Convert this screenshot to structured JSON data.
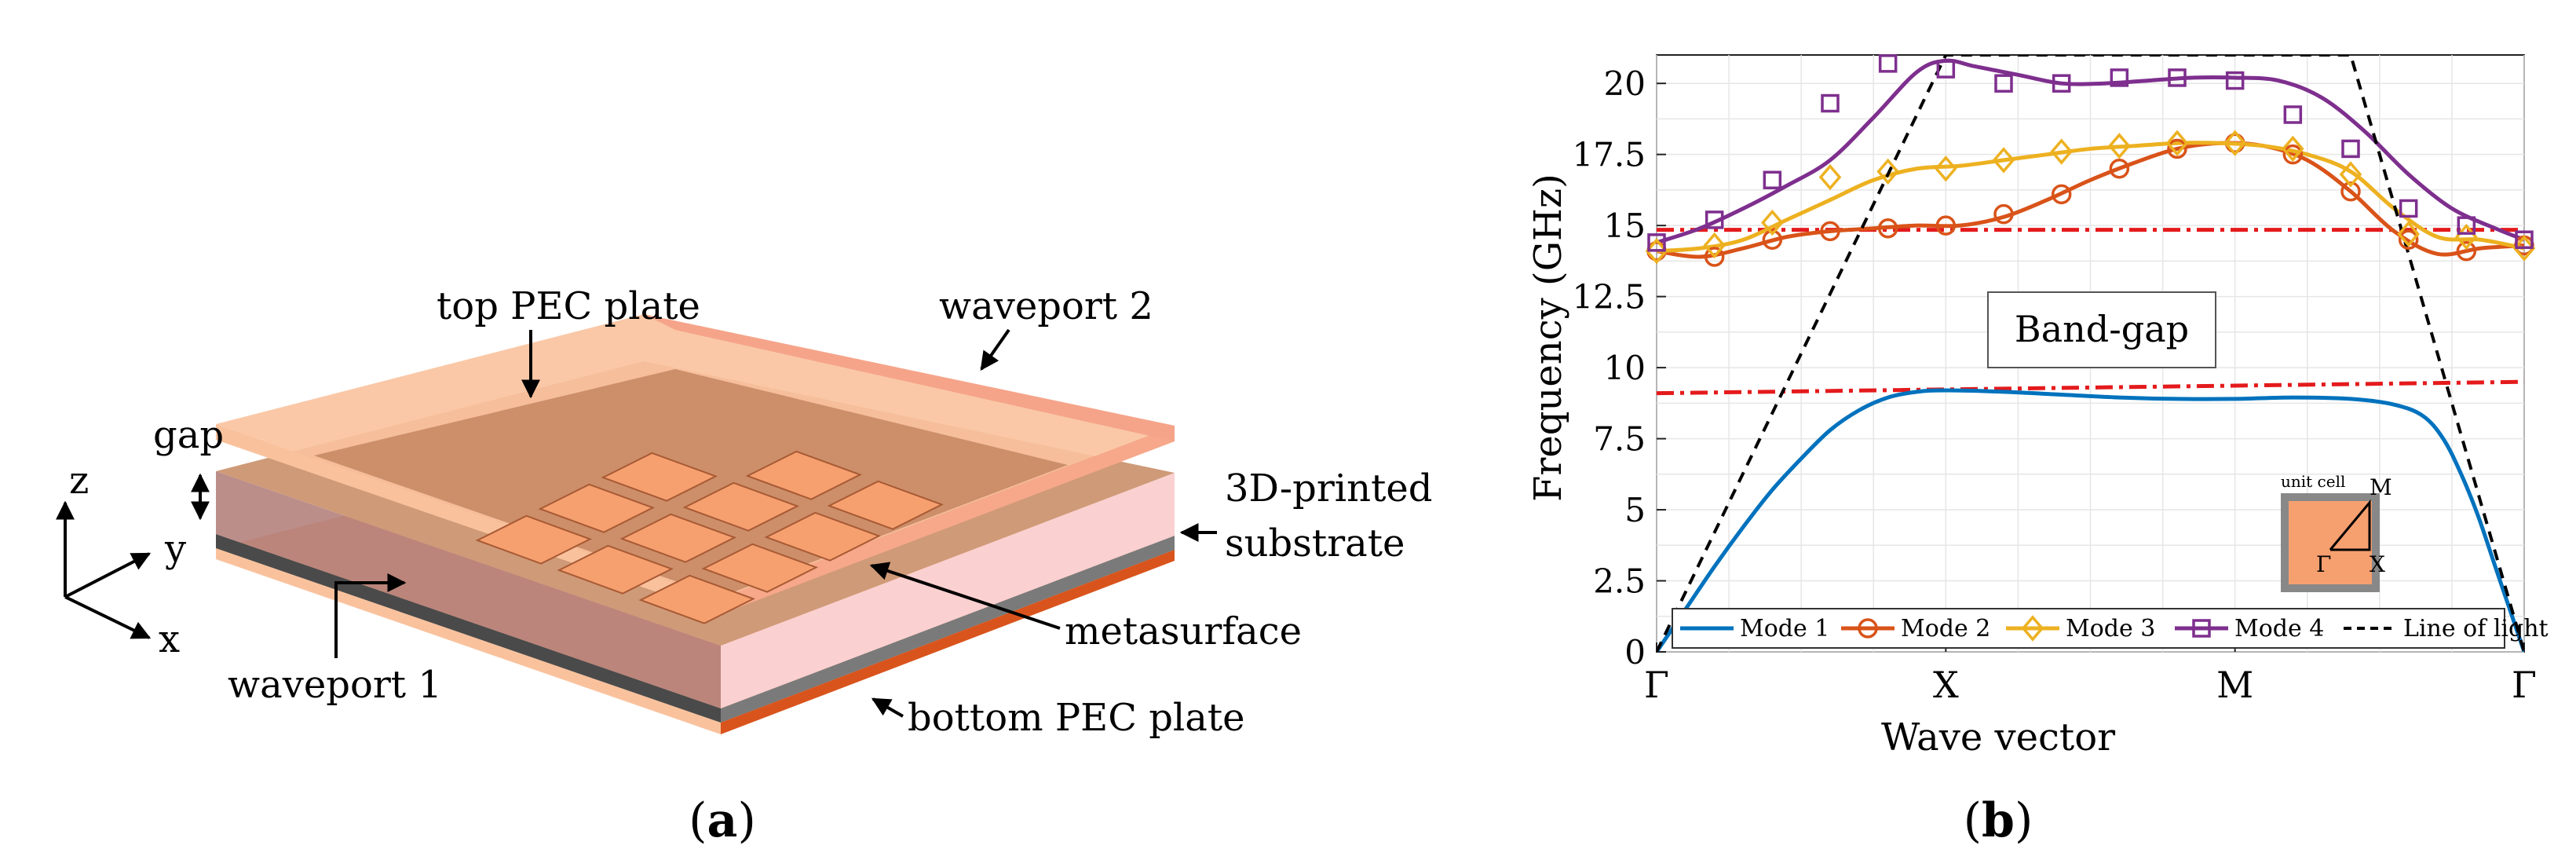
{
  "panel_a": {
    "caption_open": "(",
    "caption_letter": "a",
    "caption_close": ")",
    "labels": {
      "top_pec": "top PEC plate",
      "waveport2": "waveport 2",
      "gap": "gap",
      "substrate_line1": "3D-printed",
      "substrate_line2": "substrate",
      "metasurface": "metasurface",
      "waveport1": "waveport 1",
      "bottom_pec": "bottom PEC plate",
      "axis_z": "z",
      "axis_y": "y",
      "axis_x": "x"
    },
    "colors": {
      "copper_light": "#f9c29d",
      "copper_edge": "#d9541c",
      "substrate_dark": "#4a4a4a",
      "substrate_side": "#7a7a7a",
      "port_pink": "#f5a48a",
      "metasurface_tile": "#f6a070"
    }
  },
  "panel_b": {
    "caption_open": "(",
    "caption_letter": "b",
    "caption_close": ")",
    "band_gap_label": "Band-gap",
    "inset": {
      "title": "unit cell",
      "gamma": "Γ",
      "x": "X",
      "m": "M"
    }
  },
  "chart_data": {
    "type": "line",
    "xlabel": "Wave vector",
    "ylabel": "Frequency  (GHz)",
    "x_ticks": [
      "Γ",
      "X",
      "M",
      "Γ"
    ],
    "x_tick_positions": [
      0,
      1,
      2,
      3
    ],
    "xlim": [
      0,
      3
    ],
    "ylim": [
      0,
      21
    ],
    "y_ticks": [
      0,
      2.5,
      5,
      7.5,
      10,
      12.5,
      15,
      17.5,
      20
    ],
    "y_tick_labels": [
      "0",
      "2.5",
      "5",
      "7.5",
      "10",
      "12.5",
      "15",
      "17.5",
      "20"
    ],
    "grid": true,
    "legend_position": "bottom",
    "series": [
      {
        "name": "Mode 1",
        "color": "#0072bd",
        "marker": "none",
        "x": [
          0,
          0.1,
          0.2,
          0.3,
          0.4,
          0.5,
          0.6,
          0.7,
          0.8,
          0.9,
          1.0,
          1.2,
          1.4,
          1.6,
          1.8,
          2.0,
          2.2,
          2.4,
          2.55,
          2.65,
          2.72,
          2.78,
          2.84,
          2.9,
          2.95,
          3.0
        ],
        "y": [
          0,
          1.5,
          3.0,
          4.4,
          5.7,
          6.8,
          7.8,
          8.5,
          8.95,
          9.15,
          9.2,
          9.15,
          9.05,
          8.95,
          8.9,
          8.9,
          8.95,
          8.9,
          8.7,
          8.3,
          7.5,
          6.3,
          4.8,
          3.0,
          1.5,
          0
        ]
      },
      {
        "name": "Mode 2",
        "color": "#d95319",
        "marker": "circle",
        "x": [
          0,
          0.15,
          0.3,
          0.45,
          0.6,
          0.75,
          0.9,
          1.05,
          1.2,
          1.35,
          1.5,
          1.65,
          1.8,
          1.95,
          2.1,
          2.25,
          2.4,
          2.55,
          2.7,
          2.85,
          3.0
        ],
        "y": [
          14.1,
          13.9,
          14.2,
          14.6,
          14.8,
          14.9,
          15.0,
          15.0,
          15.3,
          15.9,
          16.6,
          17.2,
          17.7,
          17.9,
          17.8,
          17.3,
          16.2,
          14.8,
          14.0,
          14.2,
          14.3
        ],
        "marker_x": [
          0,
          0.2,
          0.4,
          0.6,
          0.8,
          1.0,
          1.2,
          1.4,
          1.6,
          1.8,
          2.0,
          2.2,
          2.4,
          2.6,
          2.8,
          3.0
        ],
        "marker_y": [
          14.1,
          13.9,
          14.5,
          14.8,
          14.9,
          15.0,
          15.4,
          16.1,
          17.0,
          17.7,
          17.9,
          17.5,
          16.2,
          14.5,
          14.1,
          14.3
        ]
      },
      {
        "name": "Mode 3",
        "color": "#edb120",
        "marker": "diamond",
        "x": [
          0,
          0.15,
          0.3,
          0.45,
          0.6,
          0.75,
          0.9,
          1.05,
          1.2,
          1.35,
          1.5,
          1.65,
          1.8,
          1.95,
          2.1,
          2.25,
          2.4,
          2.55,
          2.7,
          2.85,
          3.0
        ],
        "y": [
          14.1,
          14.2,
          14.5,
          15.2,
          15.9,
          16.6,
          17.0,
          17.1,
          17.3,
          17.5,
          17.7,
          17.8,
          17.9,
          17.9,
          17.8,
          17.5,
          16.9,
          15.6,
          14.6,
          14.5,
          14.2
        ],
        "marker_x": [
          0,
          0.2,
          0.4,
          0.6,
          0.8,
          1.0,
          1.2,
          1.4,
          1.6,
          1.8,
          2.0,
          2.2,
          2.4,
          2.6,
          2.8,
          3.0
        ],
        "marker_y": [
          14.1,
          14.3,
          15.1,
          16.7,
          16.9,
          17.0,
          17.3,
          17.6,
          17.8,
          17.9,
          17.9,
          17.7,
          16.8,
          14.7,
          14.6,
          14.2
        ]
      },
      {
        "name": "Mode 4",
        "color": "#7e2f8e",
        "marker": "square",
        "x": [
          0,
          0.15,
          0.3,
          0.45,
          0.6,
          0.75,
          0.9,
          1.0,
          1.1,
          1.25,
          1.4,
          1.55,
          1.7,
          1.85,
          2.0,
          2.15,
          2.3,
          2.45,
          2.6,
          2.75,
          2.9,
          3.0
        ],
        "y": [
          14.4,
          14.9,
          15.6,
          16.4,
          17.3,
          18.8,
          20.4,
          20.8,
          20.6,
          20.3,
          20.0,
          20.0,
          20.1,
          20.2,
          20.2,
          20.1,
          19.5,
          18.3,
          16.8,
          15.6,
          14.9,
          14.5
        ],
        "marker_x": [
          0,
          0.2,
          0.4,
          0.6,
          0.8,
          1.0,
          1.2,
          1.4,
          1.6,
          1.8,
          2.0,
          2.2,
          2.4,
          2.6,
          2.8,
          3.0
        ],
        "marker_y": [
          14.4,
          15.2,
          16.6,
          19.3,
          20.7,
          20.5,
          20.0,
          20.0,
          20.2,
          20.2,
          20.1,
          18.9,
          17.7,
          15.6,
          15.0,
          14.5
        ]
      },
      {
        "name": "Line of light",
        "color": "#000000",
        "marker": "none",
        "dash": "dashed",
        "x": [
          0,
          1.0,
          2.4,
          3.0
        ],
        "y": [
          0,
          21.0,
          21.0,
          0
        ]
      }
    ],
    "band_edges": [
      {
        "x": [
          0,
          3.0
        ],
        "y": [
          9.1,
          9.5
        ],
        "color": "#e41a1c"
      },
      {
        "x": [
          0,
          3.0
        ],
        "y": [
          14.85,
          14.85
        ],
        "color": "#e41a1c"
      }
    ]
  }
}
